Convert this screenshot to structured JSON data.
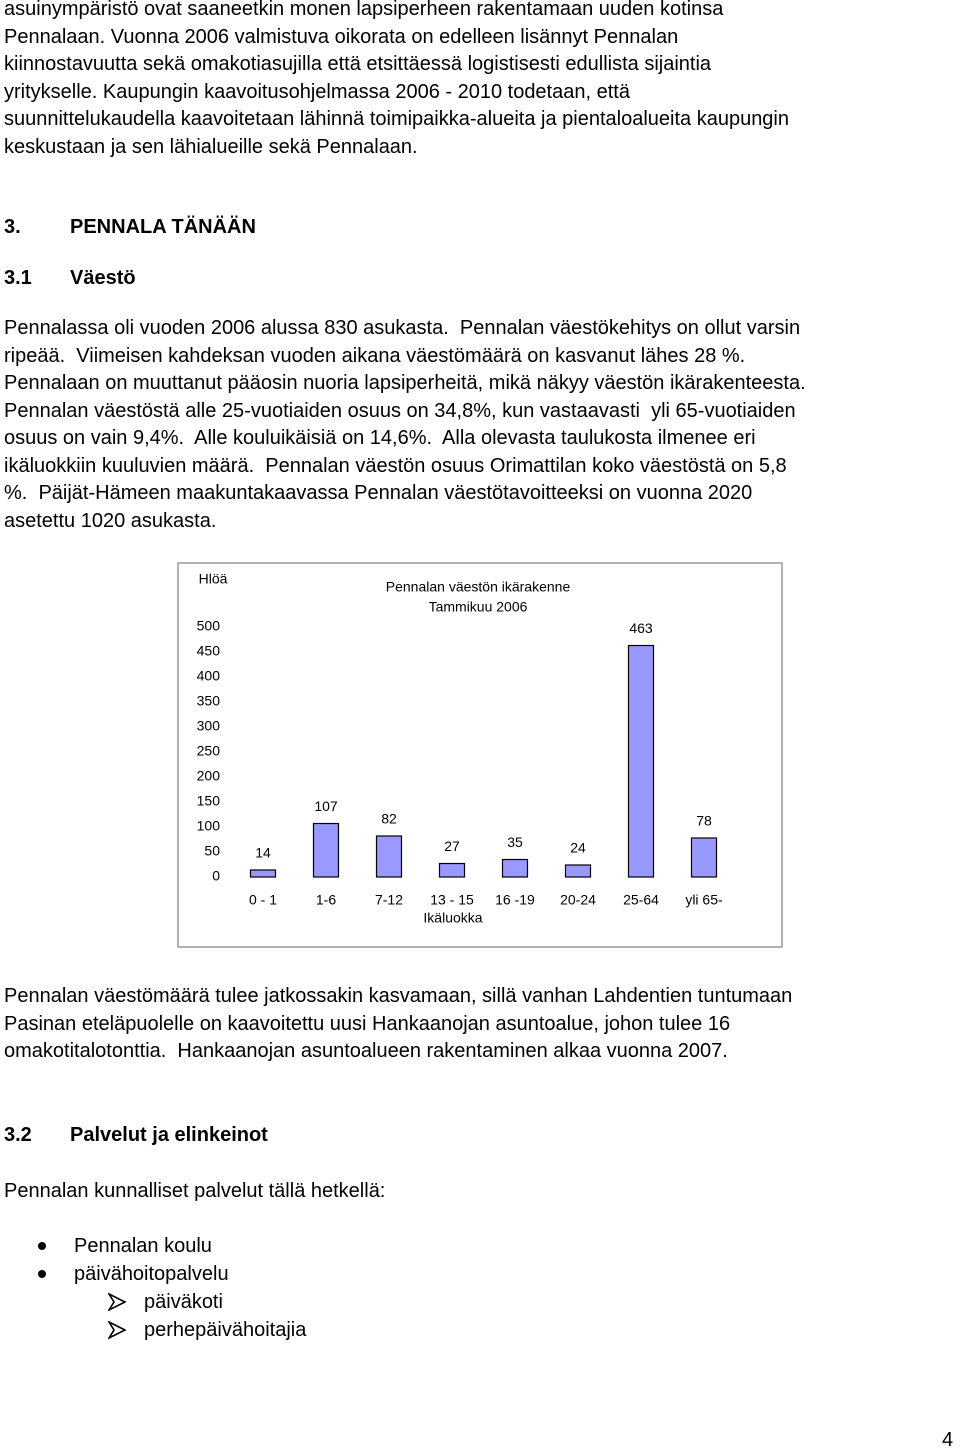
{
  "paragraph_1": [
    "asuinympäristö ovat saaneetkin monen lapsiperheen rakentamaan uuden kotinsa",
    "Pennalaan. Vuonna 2006 valmistuva oikorata on edelleen lisännyt Pennalan",
    "kiinnostavuutta sekä omakotiasujilla että etsittäessä logistisesti edullista sijaintia",
    "yritykselle. Kaupungin kaavoitusohjelmassa 2006 - 2010 todetaan, että",
    "suunnittelukaudella kaavoitetaan lähinnä toimipaikka-alueita ja pientaloalueita kaupungin",
    "keskustaan ja sen lähialueille sekä Pennalaan."
  ],
  "heading_3": {
    "number": "3.",
    "title": "PENNALA TÄNÄÄN"
  },
  "heading_3_1": {
    "number": "3.1",
    "title": "Väestö"
  },
  "paragraph_2": [
    "Pennalassa oli vuoden 2006 alussa 830 asukasta.  Pennalan väestökehitys on ollut varsin",
    "ripeää.  Viimeisen kahdeksan vuoden aikana väestömäärä on kasvanut lähes 28 %.",
    "Pennalaan on muuttanut pääosin nuoria lapsiperheitä, mikä näkyy väestön ikärakenteesta.",
    "Pennalan väestöstä alle 25-vuotiaiden osuus on 34,8%, kun vastaavasti  yli 65-vuotiaiden",
    "osuus on vain 9,4%.  Alle kouluikäisiä on 14,6%.  Alla olevasta taulukosta ilmenee eri",
    "ikäluokkiin kuuluvien määrä.  Pennalan väestön osuus Orimattilan koko väestöstä on 5,8",
    "%.  Päijät-Hämeen maakuntakaavassa Pennalan väestötavoitteeksi on vuonna 2020",
    "asetettu 1020 asukasta."
  ],
  "chart_data": {
    "type": "bar",
    "title": "Pennalan väestön ikärakenne",
    "subtitle": "Tammikuu 2006",
    "y_label": "Hlöä",
    "x_label": "Ikäluokka",
    "categories": [
      "0 - 1",
      "1-6",
      "7-12",
      "13 - 15",
      "16 -19",
      "20-24",
      "25-64",
      "yli 65-"
    ],
    "values": [
      14,
      107,
      82,
      27,
      35,
      24,
      463,
      78
    ],
    "color": "#9999ff",
    "ylim": [
      0,
      500
    ],
    "yticks": [
      0,
      50,
      100,
      150,
      200,
      250,
      300,
      350,
      400,
      450,
      500
    ],
    "grid": false
  },
  "paragraph_3": [
    "Pennalan väestömäärä tulee jatkossakin kasvamaan, sillä vanhan Lahdentien tuntumaan",
    "Pasinan eteläpuolelle on kaavoitettu uusi Hankaanojan asuntoalue, johon tulee 16",
    "omakotitalotonttia.  Hankaanojan asuntoalueen rakentaminen alkaa vuonna 2007."
  ],
  "heading_3_2": {
    "number": "3.2",
    "title": "Palvelut ja elinkeinot"
  },
  "services_intro": "Pennalan kunnalliset palvelut tällä hetkellä:",
  "bullets": [
    "Pennalan koulu",
    "päivähoitopalvelu"
  ],
  "sub_bullets": [
    "päiväkoti",
    "perhepäivähoitajia"
  ],
  "page_number": "4"
}
